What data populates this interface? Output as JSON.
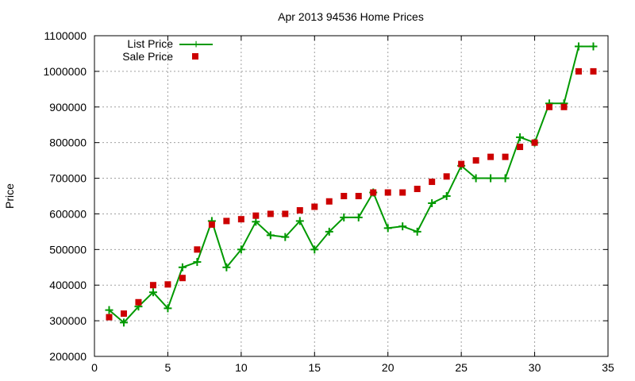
{
  "chart_data": {
    "type": "line",
    "title": "Apr 2013 94536 Home Prices",
    "xlabel": "",
    "ylabel": "Price",
    "xlim": [
      0,
      35
    ],
    "ylim": [
      200000,
      1100000
    ],
    "xticks": [
      0,
      5,
      10,
      15,
      20,
      25,
      30,
      35
    ],
    "yticks": [
      200000,
      300000,
      400000,
      500000,
      600000,
      700000,
      800000,
      900000,
      1000000,
      1100000
    ],
    "grid": true,
    "legend_position": "top-left",
    "series": [
      {
        "name": "List Price",
        "style": "line-with-plus-markers",
        "color": "#009900",
        "x": [
          1,
          2,
          3,
          4,
          5,
          6,
          7,
          8,
          9,
          10,
          11,
          12,
          13,
          14,
          15,
          16,
          17,
          18,
          19,
          20,
          21,
          22,
          23,
          24,
          25,
          26,
          27,
          28,
          29,
          30,
          31,
          32,
          33,
          34
        ],
        "values": [
          330000,
          295000,
          340000,
          380000,
          335000,
          450000,
          465000,
          580000,
          450000,
          500000,
          578000,
          540000,
          535000,
          580000,
          500000,
          550000,
          590000,
          590000,
          660000,
          560000,
          565000,
          550000,
          630000,
          650000,
          735000,
          700000,
          700000,
          700000,
          815000,
          800000,
          910000,
          910000,
          1070000,
          1070000
        ]
      },
      {
        "name": "Sale Price",
        "style": "square-markers",
        "color": "#cc0000",
        "x": [
          1,
          2,
          3,
          4,
          5,
          6,
          7,
          8,
          9,
          10,
          11,
          12,
          13,
          14,
          15,
          16,
          17,
          18,
          19,
          20,
          21,
          22,
          23,
          24,
          25,
          26,
          27,
          28,
          29,
          30,
          31,
          32,
          33,
          34
        ],
        "values": [
          310000,
          320000,
          352000,
          400000,
          402000,
          420000,
          500000,
          570000,
          580000,
          585000,
          595000,
          600000,
          600000,
          610000,
          620000,
          635000,
          650000,
          650000,
          660000,
          660000,
          660000,
          670000,
          690000,
          705000,
          740000,
          750000,
          760000,
          760000,
          788000,
          800000,
          900000,
          900000,
          1000000,
          1000000
        ]
      }
    ]
  }
}
